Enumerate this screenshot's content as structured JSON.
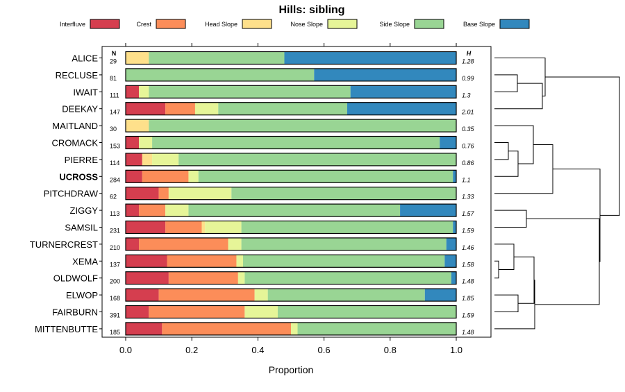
{
  "chart_data": {
    "type": "bar",
    "orientation": "horizontal-stacked",
    "title": "Hills: sibling",
    "xlabel": "Proportion",
    "xlim": [
      0,
      1
    ],
    "x_ticks": [
      "0.0",
      "0.2",
      "0.4",
      "0.6",
      "0.8",
      "1.0"
    ],
    "n_header": "N",
    "h_header": "H",
    "legend": [
      {
        "name": "Interfluve",
        "color": "#d53e4f"
      },
      {
        "name": "Crest",
        "color": "#fc8d59"
      },
      {
        "name": "Head Slope",
        "color": "#fee08b"
      },
      {
        "name": "Nose Slope",
        "color": "#e6f598"
      },
      {
        "name": "Side Slope",
        "color": "#99d594"
      },
      {
        "name": "Base Slope",
        "color": "#3288bd"
      }
    ],
    "rows": [
      {
        "label": "ALICE",
        "bold": false,
        "n": "29",
        "h": "1.28",
        "values": [
          0,
          0,
          0.07,
          0,
          0.41,
          0.52
        ]
      },
      {
        "label": "RECLUSE",
        "bold": false,
        "n": "81",
        "h": "0.99",
        "values": [
          0,
          0,
          0,
          0,
          0.57,
          0.43
        ]
      },
      {
        "label": "IWAIT",
        "bold": false,
        "n": "111",
        "h": "1.3",
        "values": [
          0.04,
          0,
          0,
          0.03,
          0.61,
          0.32
        ]
      },
      {
        "label": "DEEKAY",
        "bold": false,
        "n": "147",
        "h": "2.01",
        "values": [
          0.12,
          0.09,
          0,
          0.07,
          0.39,
          0.33
        ]
      },
      {
        "label": "MAITLAND",
        "bold": false,
        "n": "30",
        "h": "0.35",
        "values": [
          0,
          0,
          0.07,
          0,
          0.93,
          0
        ]
      },
      {
        "label": "CROMACK",
        "bold": false,
        "n": "153",
        "h": "0.76",
        "values": [
          0.04,
          0,
          0,
          0.04,
          0.87,
          0.05
        ]
      },
      {
        "label": "PIERRE",
        "bold": false,
        "n": "114",
        "h": "0.86",
        "values": [
          0.05,
          0,
          0.03,
          0.08,
          0.84,
          0
        ]
      },
      {
        "label": "UCROSS",
        "bold": true,
        "n": "284",
        "h": "1.1",
        "values": [
          0.05,
          0.14,
          0,
          0.03,
          0.77,
          0.01
        ]
      },
      {
        "label": "PITCHDRAW",
        "bold": false,
        "n": "62",
        "h": "1.33",
        "values": [
          0.1,
          0.03,
          0,
          0.19,
          0.68,
          0
        ]
      },
      {
        "label": "ZIGGY",
        "bold": false,
        "n": "113",
        "h": "1.57",
        "values": [
          0.04,
          0.08,
          0,
          0.07,
          0.64,
          0.17
        ]
      },
      {
        "label": "SAMSIL",
        "bold": false,
        "n": "231",
        "h": "1.59",
        "values": [
          0.12,
          0.11,
          0.01,
          0.11,
          0.64,
          0.01
        ]
      },
      {
        "label": "TURNERCREST",
        "bold": false,
        "n": "210",
        "h": "1.46",
        "values": [
          0.04,
          0.27,
          0,
          0.04,
          0.62,
          0.03
        ]
      },
      {
        "label": "XEMA",
        "bold": false,
        "n": "137",
        "h": "1.58",
        "values": [
          0.125,
          0.21,
          0,
          0.02,
          0.61,
          0.035
        ]
      },
      {
        "label": "OLDWOLF",
        "bold": false,
        "n": "200",
        "h": "1.48",
        "values": [
          0.13,
          0.21,
          0,
          0.02,
          0.625,
          0.015
        ]
      },
      {
        "label": "ELWOP",
        "bold": false,
        "n": "168",
        "h": "1.85",
        "values": [
          0.1,
          0.29,
          0,
          0.04,
          0.475,
          0.095
        ]
      },
      {
        "label": "FAIRBURN",
        "bold": false,
        "n": "391",
        "h": "1.59",
        "values": [
          0.07,
          0.29,
          0,
          0.1,
          0.54,
          0
        ]
      },
      {
        "label": "MITTENBUTTE",
        "bold": false,
        "n": "185",
        "h": "1.48",
        "values": [
          0.11,
          0.39,
          0,
          0.02,
          0.48,
          0
        ]
      }
    ]
  }
}
